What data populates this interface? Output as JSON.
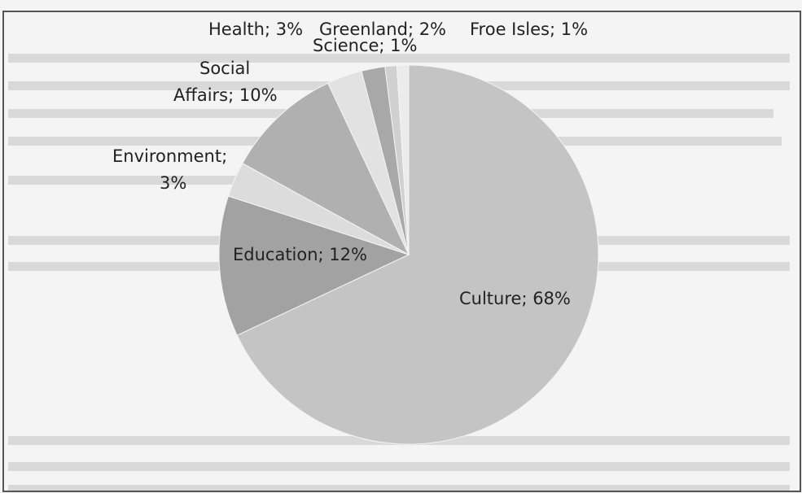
{
  "chart_data": {
    "type": "pie",
    "title": "",
    "slices": [
      {
        "label": "Culture",
        "value": 68,
        "display": "Culture; 68%",
        "color": "#c4c4c4"
      },
      {
        "label": "Education",
        "value": 12,
        "display": "Education; 12%",
        "color": "#a2a2a2"
      },
      {
        "label": "Environment",
        "value": 3,
        "display_lines": [
          "Environment;",
          "3%"
        ],
        "color": "#dcdcdc"
      },
      {
        "label": "Social Affairs",
        "value": 10,
        "display_lines": [
          "Social",
          "Affairs; 10%"
        ],
        "color": "#b0b0b0"
      },
      {
        "label": "Health",
        "value": 3,
        "display": "Health; 3%",
        "color": "#e2e2e2"
      },
      {
        "label": "Greenland",
        "value": 2,
        "display": "Greenland; 2%",
        "color": "#a8a8a8"
      },
      {
        "label": "Science",
        "value": 1,
        "display": "Science; 1%",
        "color": "#d0d0d0"
      },
      {
        "label": "Froe Isles",
        "value": 1,
        "display": "Froe Isles; 1%",
        "color": "#ececec"
      }
    ],
    "legend": "none"
  },
  "colors": {
    "frame_border": "#555555",
    "background": "#f4f4f4",
    "label_text": "#222222"
  }
}
